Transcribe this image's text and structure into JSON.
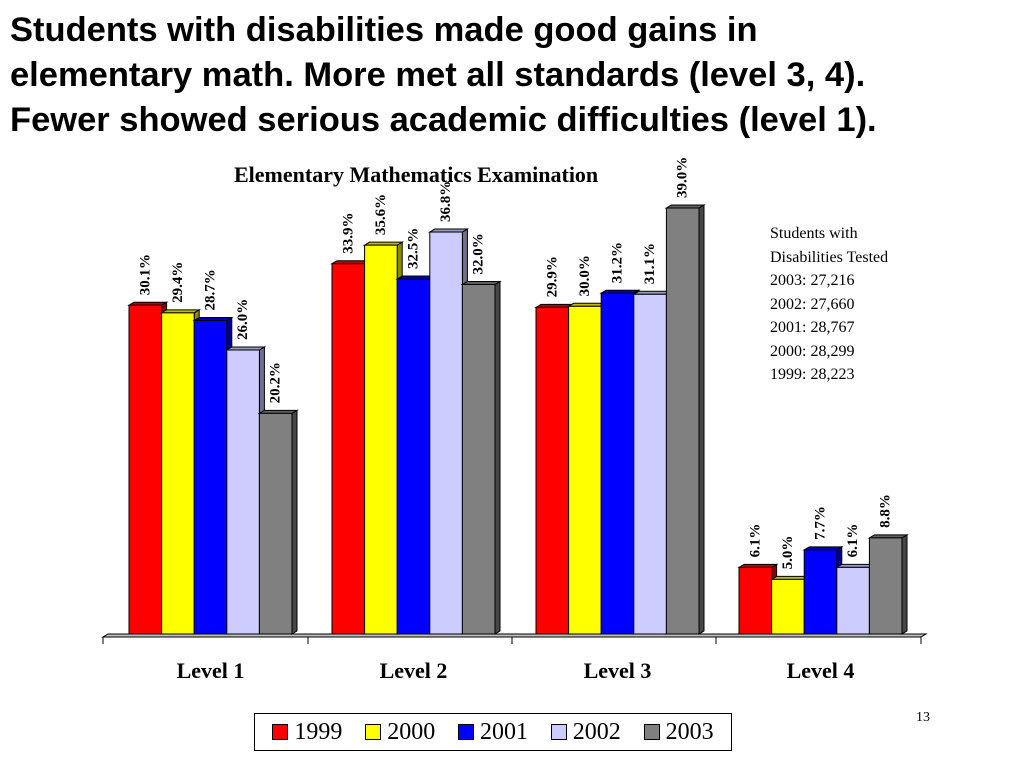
{
  "slide": {
    "headline_lines": [
      "Students with disabilities made good gains in",
      "elementary math. More met all standards (level 3, 4).",
      "Fewer showed serious academic difficulties (level 1)."
    ],
    "note_lines": [
      "Students with",
      "Disabilities Tested",
      "2003:  27,216",
      "2002:  27,660",
      "2001:  28,767",
      "2000:  28,299",
      "1999:  28,223"
    ],
    "page_number": "13"
  },
  "chart_data": {
    "type": "bar",
    "title": "Elementary Mathematics Examination",
    "categories": [
      "Level 1",
      "Level 2",
      "Level 3",
      "Level 4"
    ],
    "series": [
      {
        "name": "1999",
        "color": "#ff0000",
        "values": [
          30.1,
          33.9,
          29.9,
          6.1
        ],
        "labels": [
          "30.1%",
          "33.9%",
          "29.9%",
          "6.1%"
        ]
      },
      {
        "name": "2000",
        "color": "#ffff00",
        "values": [
          29.4,
          35.6,
          30.0,
          5.0
        ],
        "labels": [
          "29.4%",
          "35.6%",
          "30.0%",
          "5.0%"
        ]
      },
      {
        "name": "2001",
        "color": "#0000ff",
        "values": [
          28.7,
          32.5,
          31.2,
          7.7
        ],
        "labels": [
          "28.7%",
          "32.5%",
          "31.2%",
          "7.7%"
        ]
      },
      {
        "name": "2002",
        "color": "#ccccff",
        "values": [
          26.0,
          36.8,
          31.1,
          6.1
        ],
        "labels": [
          "26.0%",
          "36.8%",
          "31.1%",
          "6.1%"
        ]
      },
      {
        "name": "2003",
        "color": "#808080",
        "values": [
          20.2,
          32.0,
          39.0,
          8.8
        ],
        "labels": [
          "20.2%",
          "32.0%",
          "39.0%",
          "8.8%"
        ]
      }
    ],
    "ylim": [
      0,
      39
    ],
    "legend_position": "bottom",
    "grid": false,
    "style": "3d-bars"
  }
}
